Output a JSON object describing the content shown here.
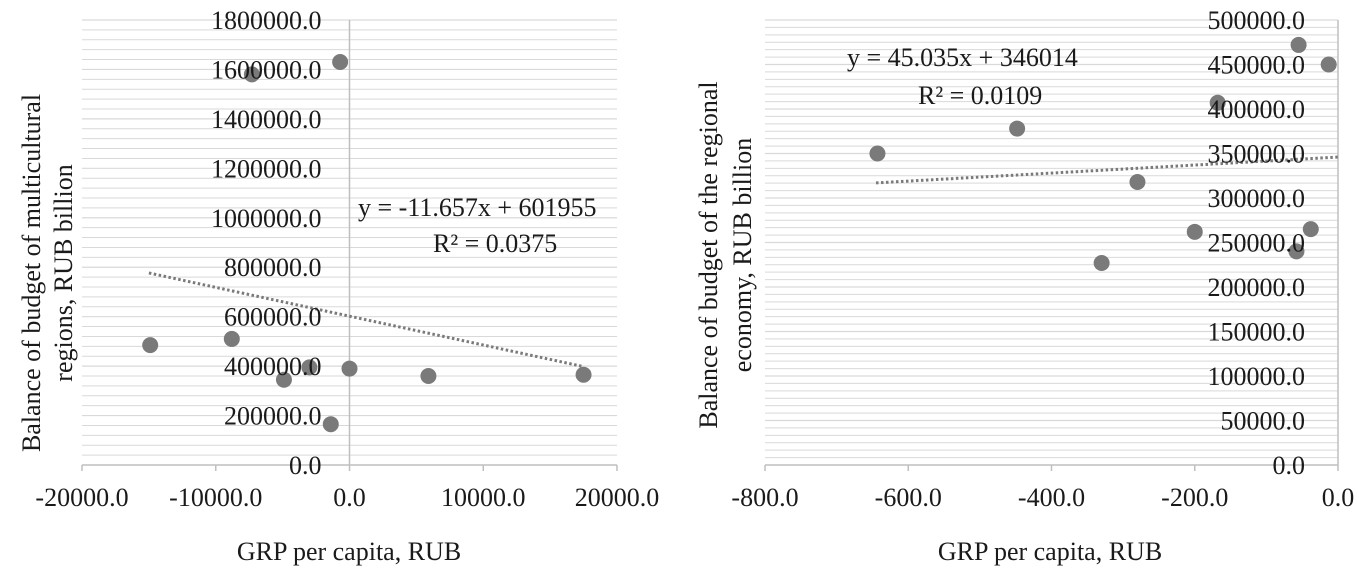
{
  "chart_data": [
    {
      "type": "scatter",
      "title": "",
      "xlabel": "GRP per capita, RUB",
      "ylabel": "Balance of budget of multicultural regions, RUB billion",
      "ylabel_lines": [
        "Balance of budget of multicultural",
        "regions, RUB billion"
      ],
      "xlim": [
        -20000,
        20000
      ],
      "ylim": [
        0,
        1800000
      ],
      "x_ticks": [
        -20000,
        -10000,
        0,
        10000,
        20000
      ],
      "x_tick_labels": [
        "-20000.0",
        "-10000.0",
        "0.0",
        "10000.0",
        "20000.0"
      ],
      "y_ticks": [
        0,
        200000,
        400000,
        600000,
        800000,
        1000000,
        1200000,
        1400000,
        1600000,
        1800000
      ],
      "y_tick_labels": [
        "0.0",
        "200000.0",
        "400000.0",
        "600000.0",
        "800000.0",
        "1000000.0",
        "1200000.0",
        "1400000.0",
        "1600000.0",
        "1800000.0"
      ],
      "grid": true,
      "points": [
        {
          "x": -14900,
          "y": 485000
        },
        {
          "x": -8800,
          "y": 510000
        },
        {
          "x": -7300,
          "y": 1580000
        },
        {
          "x": -4900,
          "y": 345000
        },
        {
          "x": -3000,
          "y": 395000
        },
        {
          "x": -1400,
          "y": 165000
        },
        {
          "x": -700,
          "y": 1630000
        },
        {
          "x": 0,
          "y": 390000
        },
        {
          "x": 5900,
          "y": 360000
        },
        {
          "x": 17500,
          "y": 365000
        }
      ],
      "trendline": {
        "slope": -11.657,
        "intercept": 601955,
        "x_range": [
          -15000,
          17500
        ]
      },
      "annotation": {
        "equation": "y = -11.657x + 601955",
        "r2": "R² = 0.0375"
      },
      "colors": {
        "marker": "#7a7a7a",
        "trend": "#7a7a7a",
        "grid": "#d9d9d9",
        "axis": "#bfbfbf"
      }
    },
    {
      "type": "scatter",
      "title": "",
      "xlabel": "GRP per capita, RUB",
      "ylabel": "Balance of budget of the regional economy, RUB billion",
      "ylabel_lines": [
        "Balance of budget of the regional",
        "economy, RUB billion"
      ],
      "xlim": [
        -800,
        0
      ],
      "ylim": [
        0,
        500000
      ],
      "x_ticks": [
        -800,
        -600,
        -400,
        -200,
        0
      ],
      "x_tick_labels": [
        "-800.0",
        "-600.0",
        "-400.0",
        "-200.0",
        "0.0"
      ],
      "y_ticks": [
        0,
        50000,
        100000,
        150000,
        200000,
        250000,
        300000,
        350000,
        400000,
        450000,
        500000
      ],
      "y_tick_labels": [
        "0.0",
        "50000.0",
        "100000.0",
        "150000.0",
        "200000.0",
        "250000.0",
        "300000.0",
        "350000.0",
        "400000.0",
        "450000.0",
        "500000.0"
      ],
      "grid": true,
      "points": [
        {
          "x": -643,
          "y": 350000
        },
        {
          "x": -448,
          "y": 378000
        },
        {
          "x": -330,
          "y": 227000
        },
        {
          "x": -280,
          "y": 318000
        },
        {
          "x": -200,
          "y": 262000
        },
        {
          "x": -168,
          "y": 407000
        },
        {
          "x": -58,
          "y": 240000
        },
        {
          "x": -55,
          "y": 472000
        },
        {
          "x": -38,
          "y": 265000
        },
        {
          "x": -13,
          "y": 450000
        }
      ],
      "trendline": {
        "slope": 45.035,
        "intercept": 346014,
        "x_range": [
          -645,
          0
        ]
      },
      "annotation": {
        "equation": "y = 45.035x + 346014",
        "r2": "R² = 0.0109"
      },
      "colors": {
        "marker": "#7a7a7a",
        "trend": "#7a7a7a",
        "grid": "#d9d9d9",
        "axis": "#bfbfbf"
      }
    }
  ]
}
